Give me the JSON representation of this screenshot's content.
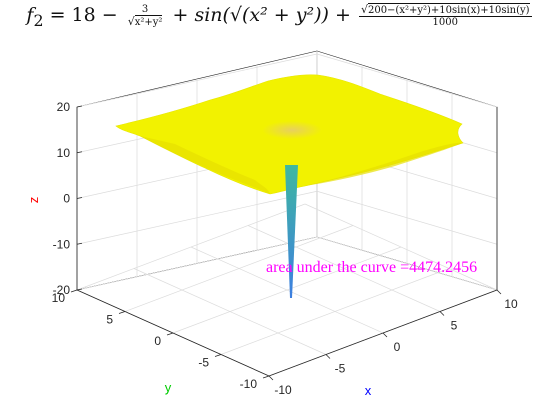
{
  "chart_data": {
    "type": "surface",
    "title": {
      "lhs": "f",
      "subscript": "2",
      "constant": "18",
      "term1_numerator": "3",
      "term1_denominator": "x²+y²",
      "term2": "sin(√(x² + y²))",
      "term3_numerator": "200−(x²+y²)+10sin(x)+10sin(y)",
      "term3_denominator": "1000"
    },
    "xlabel": "x",
    "ylabel": "y",
    "zlabel": "z",
    "xlim": [
      -10,
      10
    ],
    "ylim": [
      -10,
      10
    ],
    "zlim": [
      -20,
      20
    ],
    "x_ticks": [
      "-10",
      "-5",
      "0",
      "5",
      "10"
    ],
    "y_ticks": [
      "10",
      "5",
      "0",
      "-5",
      "-10"
    ],
    "z_ticks": [
      "20",
      "10",
      "0",
      "-10",
      "-20"
    ],
    "grid": true,
    "surface_plateau_z": 16,
    "spike_min_z": -20,
    "annotation": "area under the curve =4474.2456",
    "colors": {
      "plateau": "#f2f200",
      "center": "#e8d060",
      "spike_top": "#3fb8a0",
      "spike_bottom": "#3d7fe0",
      "annotation": "#ff00ff",
      "xlabel": "#0000ff",
      "ylabel": "#00cc00",
      "zlabel": "#ff0000"
    }
  }
}
